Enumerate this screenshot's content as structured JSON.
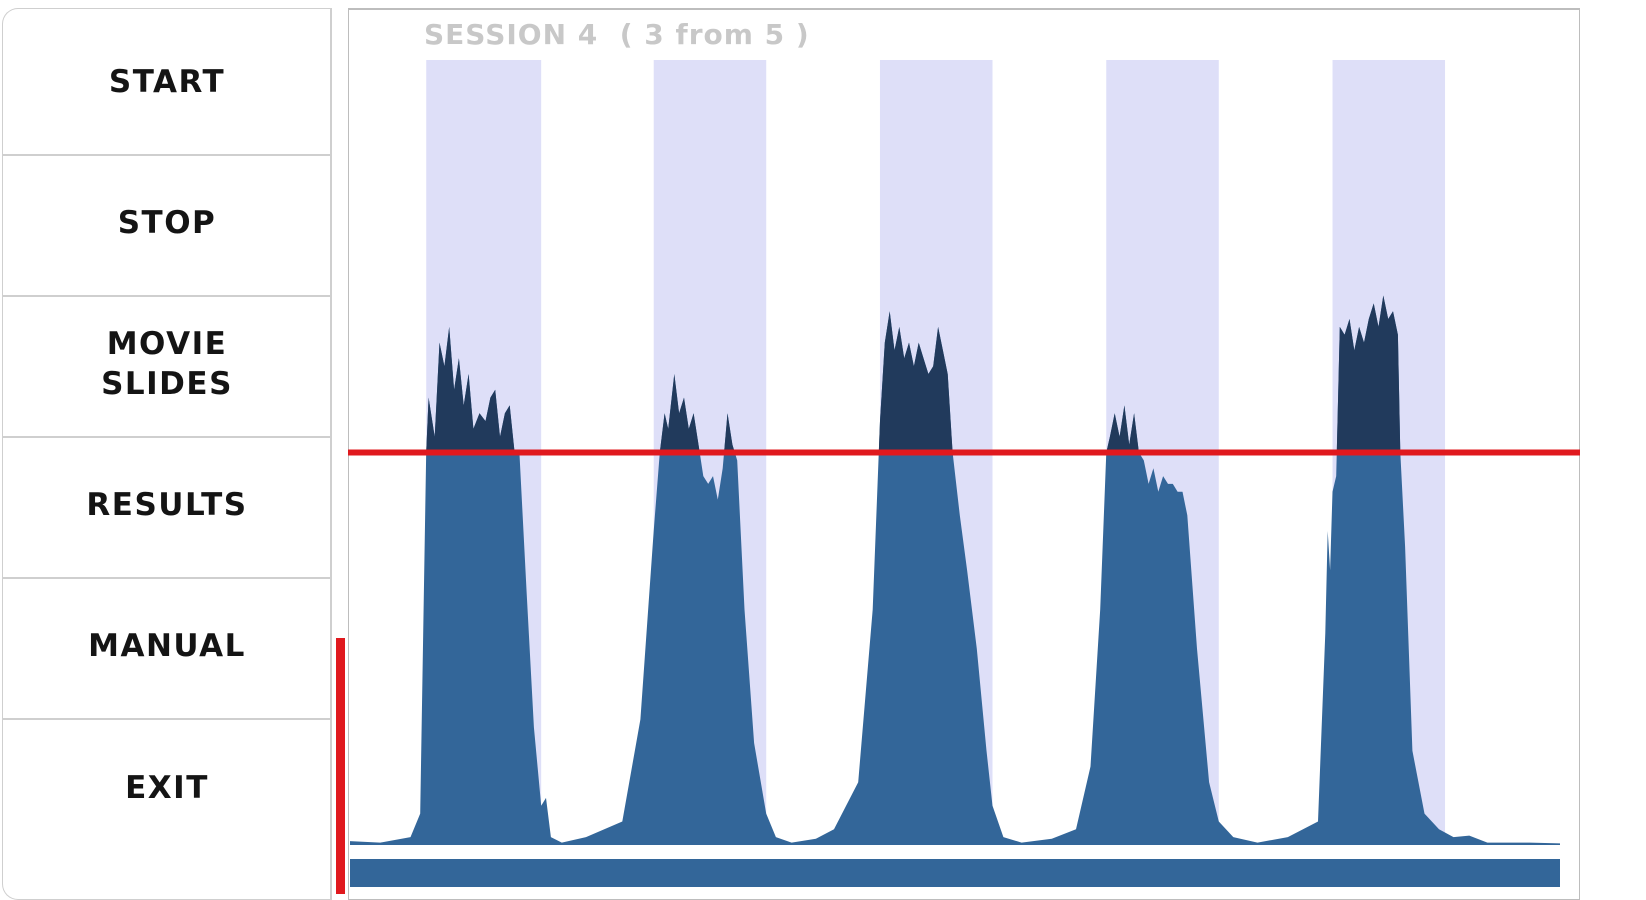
{
  "sidebar": {
    "items": [
      {
        "id": "start",
        "label": "START"
      },
      {
        "id": "stop",
        "label": "STOP"
      },
      {
        "id": "movie-slides",
        "label": "MOVIE\nSLIDES"
      },
      {
        "id": "results",
        "label": "RESULTS"
      },
      {
        "id": "manual",
        "label": "MANUAL"
      },
      {
        "id": "exit",
        "label": "EXIT"
      }
    ]
  },
  "session": {
    "title": "SESSION 4  ( 3 from 5 )"
  },
  "colors": {
    "session_band": "#dedff8",
    "signal_fill": "#336699",
    "signal_above": "#213a5c",
    "threshold": "#e0191e",
    "baseline_bar": "#336699",
    "level_bar": "#e0191e"
  },
  "chart_data": {
    "type": "area",
    "title": "",
    "xlabel": "",
    "ylabel": "",
    "xlim": [
      0,
      1
    ],
    "ylim": [
      0,
      1
    ],
    "threshold": 0.5,
    "sessions_total": 5,
    "active_band_index": 2,
    "bands": [
      {
        "start": 0.063,
        "end": 0.158
      },
      {
        "start": 0.251,
        "end": 0.344
      },
      {
        "start": 0.438,
        "end": 0.531
      },
      {
        "start": 0.625,
        "end": 0.718
      },
      {
        "start": 0.812,
        "end": 0.905
      }
    ],
    "series": [
      {
        "values": [
          [
            0.0,
            0.005
          ],
          [
            0.025,
            0.003
          ],
          [
            0.05,
            0.01
          ],
          [
            0.058,
            0.04
          ],
          [
            0.063,
            0.5
          ],
          [
            0.065,
            0.57
          ],
          [
            0.07,
            0.52
          ],
          [
            0.074,
            0.64
          ],
          [
            0.078,
            0.61
          ],
          [
            0.082,
            0.66
          ],
          [
            0.086,
            0.58
          ],
          [
            0.09,
            0.62
          ],
          [
            0.094,
            0.56
          ],
          [
            0.098,
            0.6
          ],
          [
            0.102,
            0.53
          ],
          [
            0.107,
            0.55
          ],
          [
            0.112,
            0.54
          ],
          [
            0.116,
            0.57
          ],
          [
            0.12,
            0.58
          ],
          [
            0.124,
            0.52
          ],
          [
            0.128,
            0.55
          ],
          [
            0.132,
            0.56
          ],
          [
            0.136,
            0.5
          ],
          [
            0.14,
            0.5
          ],
          [
            0.146,
            0.32
          ],
          [
            0.152,
            0.15
          ],
          [
            0.158,
            0.05
          ],
          [
            0.162,
            0.06
          ],
          [
            0.166,
            0.01
          ],
          [
            0.175,
            0.003
          ],
          [
            0.195,
            0.01
          ],
          [
            0.225,
            0.03
          ],
          [
            0.24,
            0.16
          ],
          [
            0.251,
            0.4
          ],
          [
            0.256,
            0.5
          ],
          [
            0.26,
            0.55
          ],
          [
            0.263,
            0.53
          ],
          [
            0.268,
            0.6
          ],
          [
            0.272,
            0.55
          ],
          [
            0.276,
            0.57
          ],
          [
            0.28,
            0.53
          ],
          [
            0.284,
            0.55
          ],
          [
            0.288,
            0.51
          ],
          [
            0.292,
            0.47
          ],
          [
            0.296,
            0.46
          ],
          [
            0.3,
            0.47
          ],
          [
            0.304,
            0.44
          ],
          [
            0.308,
            0.48
          ],
          [
            0.312,
            0.55
          ],
          [
            0.316,
            0.51
          ],
          [
            0.32,
            0.49
          ],
          [
            0.326,
            0.3
          ],
          [
            0.334,
            0.13
          ],
          [
            0.344,
            0.04
          ],
          [
            0.352,
            0.01
          ],
          [
            0.365,
            0.003
          ],
          [
            0.385,
            0.008
          ],
          [
            0.4,
            0.02
          ],
          [
            0.42,
            0.08
          ],
          [
            0.432,
            0.3
          ],
          [
            0.438,
            0.54
          ],
          [
            0.442,
            0.64
          ],
          [
            0.446,
            0.68
          ],
          [
            0.45,
            0.63
          ],
          [
            0.454,
            0.66
          ],
          [
            0.458,
            0.62
          ],
          [
            0.462,
            0.64
          ],
          [
            0.466,
            0.61
          ],
          [
            0.47,
            0.64
          ],
          [
            0.474,
            0.62
          ],
          [
            0.478,
            0.6
          ],
          [
            0.482,
            0.61
          ],
          [
            0.486,
            0.66
          ],
          [
            0.49,
            0.63
          ],
          [
            0.494,
            0.6
          ],
          [
            0.498,
            0.5
          ],
          [
            0.504,
            0.42
          ],
          [
            0.51,
            0.35
          ],
          [
            0.518,
            0.25
          ],
          [
            0.526,
            0.12
          ],
          [
            0.531,
            0.05
          ],
          [
            0.54,
            0.01
          ],
          [
            0.555,
            0.003
          ],
          [
            0.58,
            0.008
          ],
          [
            0.6,
            0.02
          ],
          [
            0.612,
            0.1
          ],
          [
            0.62,
            0.3
          ],
          [
            0.625,
            0.5
          ],
          [
            0.628,
            0.52
          ],
          [
            0.632,
            0.55
          ],
          [
            0.636,
            0.52
          ],
          [
            0.64,
            0.56
          ],
          [
            0.644,
            0.51
          ],
          [
            0.648,
            0.55
          ],
          [
            0.652,
            0.5
          ],
          [
            0.656,
            0.49
          ],
          [
            0.66,
            0.46
          ],
          [
            0.664,
            0.48
          ],
          [
            0.668,
            0.45
          ],
          [
            0.672,
            0.47
          ],
          [
            0.676,
            0.46
          ],
          [
            0.68,
            0.46
          ],
          [
            0.684,
            0.45
          ],
          [
            0.688,
            0.45
          ],
          [
            0.692,
            0.42
          ],
          [
            0.7,
            0.25
          ],
          [
            0.71,
            0.08
          ],
          [
            0.718,
            0.03
          ],
          [
            0.73,
            0.01
          ],
          [
            0.75,
            0.003
          ],
          [
            0.775,
            0.01
          ],
          [
            0.8,
            0.03
          ],
          [
            0.806,
            0.27
          ],
          [
            0.808,
            0.4
          ],
          [
            0.81,
            0.35
          ],
          [
            0.812,
            0.45
          ],
          [
            0.815,
            0.47
          ],
          [
            0.818,
            0.66
          ],
          [
            0.822,
            0.65
          ],
          [
            0.826,
            0.67
          ],
          [
            0.83,
            0.63
          ],
          [
            0.834,
            0.66
          ],
          [
            0.838,
            0.64
          ],
          [
            0.842,
            0.67
          ],
          [
            0.846,
            0.69
          ],
          [
            0.85,
            0.66
          ],
          [
            0.854,
            0.7
          ],
          [
            0.858,
            0.67
          ],
          [
            0.862,
            0.68
          ],
          [
            0.866,
            0.65
          ],
          [
            0.868,
            0.5
          ],
          [
            0.872,
            0.38
          ],
          [
            0.878,
            0.12
          ],
          [
            0.888,
            0.04
          ],
          [
            0.9,
            0.02
          ],
          [
            0.912,
            0.01
          ],
          [
            0.925,
            0.012
          ],
          [
            0.94,
            0.003
          ],
          [
            0.975,
            0.003
          ],
          [
            1.0,
            0.002
          ]
        ]
      }
    ]
  }
}
